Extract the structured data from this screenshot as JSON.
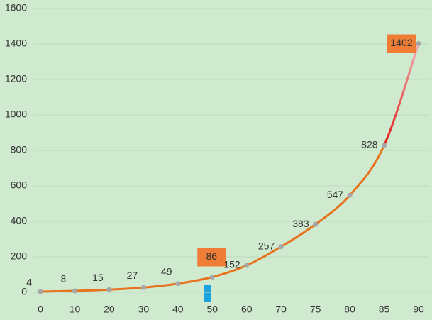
{
  "chart_data": {
    "type": "line",
    "categories": [
      "0",
      "10",
      "20",
      "30",
      "40",
      "50",
      "60",
      "70",
      "75",
      "80",
      "85",
      "90"
    ],
    "series": [
      {
        "name": null,
        "color": "#e8731f",
        "values": [
          4,
          8,
          15,
          27,
          49,
          86,
          152,
          257,
          383,
          547,
          828,
          1402
        ]
      }
    ],
    "highlighted_categories": [
      "50",
      "90"
    ],
    "highlight_color": "#ef7d35",
    "last_segment_color": "#e81818",
    "point_color": "#a6a6a6",
    "ylim": [
      0,
      1600
    ],
    "yticks": [
      0,
      200,
      400,
      600,
      800,
      1000,
      1200,
      1400,
      1600
    ],
    "grid": true
  }
}
